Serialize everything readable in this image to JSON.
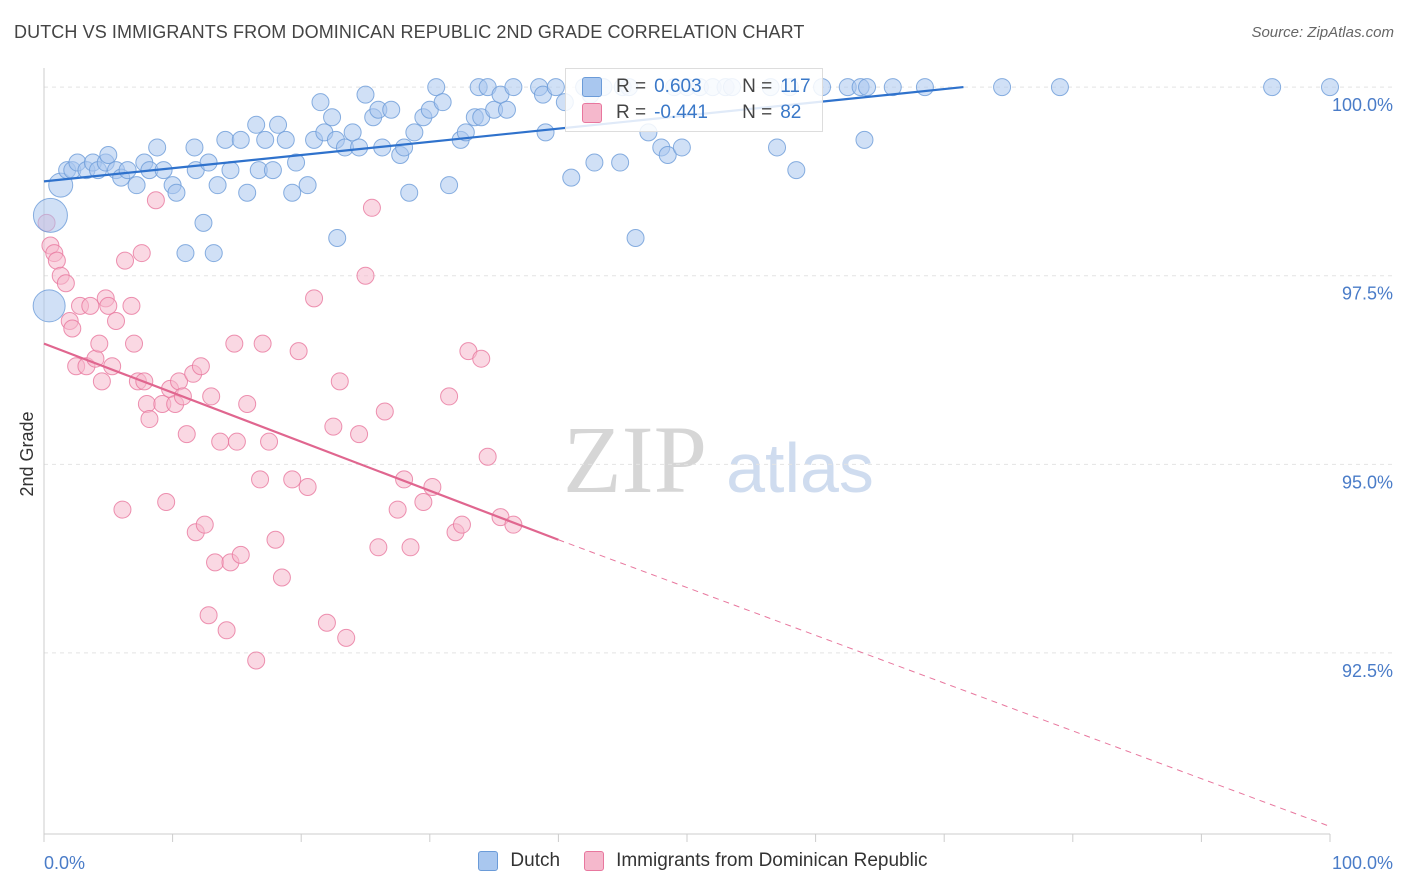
{
  "title": "DUTCH VS IMMIGRANTS FROM DOMINICAN REPUBLIC 2ND GRADE CORRELATION CHART",
  "source": "Source: ZipAtlas.com",
  "watermark": {
    "zip": "ZIP",
    "atlas": "atlas"
  },
  "colors": {
    "blue": "#6b9bd8",
    "blue_fill": "#a9c7ef",
    "pink": "#e8779e",
    "pink_fill": "#f5b8cc",
    "axis_text": "#4a7cc8"
  },
  "legend": {
    "rows": [
      {
        "r_label": "R =",
        "r_value": "0.603",
        "n_label": "N =",
        "n_value": "117"
      },
      {
        "r_label": "R =",
        "r_value": "-0.441",
        "n_label": "N =",
        "n_value": "82"
      }
    ]
  },
  "bottom_legend": {
    "dutch": "Dutch",
    "dominican": "Immigrants from Dominican Republic"
  },
  "chart_data": {
    "type": "scatter",
    "title": "DUTCH VS IMMIGRANTS FROM DOMINICAN REPUBLIC 2ND GRADE CORRELATION CHART",
    "xlabel": "",
    "ylabel": "2nd Grade",
    "x_tick_labels": [
      "0.0%",
      "100.0%"
    ],
    "y_tick_labels": [
      "100.0%",
      "97.5%",
      "95.0%",
      "92.5%"
    ],
    "y_ticks": [
      100.0,
      97.5,
      95.0,
      92.5
    ],
    "xlim": [
      0,
      100
    ],
    "ylim": [
      90.1,
      100.2
    ],
    "grid": true,
    "legend_position": "top-center",
    "series": [
      {
        "name": "Dutch",
        "r": 0.603,
        "n": 117,
        "trend": {
          "x0": 0,
          "y0": 98.75,
          "x1": 71.5,
          "y1": 100.0
        },
        "points": [
          [
            0.5,
            98.3
          ],
          [
            0.4,
            97.1
          ],
          [
            1.3,
            98.7
          ],
          [
            1.8,
            98.9
          ],
          [
            2.2,
            98.9
          ],
          [
            2.6,
            99.0
          ],
          [
            3.3,
            98.9
          ],
          [
            3.8,
            99.0
          ],
          [
            4.2,
            98.9
          ],
          [
            4.8,
            99.0
          ],
          [
            5.0,
            99.1
          ],
          [
            5.6,
            98.9
          ],
          [
            6.0,
            98.8
          ],
          [
            6.5,
            98.9
          ],
          [
            7.2,
            98.7
          ],
          [
            7.8,
            99.0
          ],
          [
            8.2,
            98.9
          ],
          [
            8.8,
            99.2
          ],
          [
            9.3,
            98.9
          ],
          [
            10.0,
            98.7
          ],
          [
            10.3,
            98.6
          ],
          [
            11.0,
            97.8
          ],
          [
            11.7,
            99.2
          ],
          [
            11.8,
            98.9
          ],
          [
            12.4,
            98.2
          ],
          [
            12.8,
            99.0
          ],
          [
            13.2,
            97.8
          ],
          [
            13.5,
            98.7
          ],
          [
            14.1,
            99.3
          ],
          [
            14.5,
            98.9
          ],
          [
            15.3,
            99.3
          ],
          [
            15.8,
            98.6
          ],
          [
            16.5,
            99.5
          ],
          [
            16.7,
            98.9
          ],
          [
            17.2,
            99.3
          ],
          [
            17.8,
            98.9
          ],
          [
            18.2,
            99.5
          ],
          [
            18.8,
            99.3
          ],
          [
            19.3,
            98.6
          ],
          [
            19.6,
            99.0
          ],
          [
            20.5,
            98.7
          ],
          [
            21.0,
            99.3
          ],
          [
            21.5,
            99.8
          ],
          [
            21.8,
            99.4
          ],
          [
            22.4,
            99.6
          ],
          [
            22.7,
            99.3
          ],
          [
            22.8,
            98.0
          ],
          [
            23.4,
            99.2
          ],
          [
            24.0,
            99.4
          ],
          [
            24.5,
            99.2
          ],
          [
            25.0,
            99.9
          ],
          [
            25.6,
            99.6
          ],
          [
            26.0,
            99.7
          ],
          [
            26.3,
            99.2
          ],
          [
            27.0,
            99.7
          ],
          [
            27.7,
            99.1
          ],
          [
            28.0,
            99.2
          ],
          [
            28.4,
            98.6
          ],
          [
            28.8,
            99.4
          ],
          [
            29.5,
            99.6
          ],
          [
            30.0,
            99.7
          ],
          [
            30.5,
            100.0
          ],
          [
            31.0,
            99.8
          ],
          [
            31.5,
            98.7
          ],
          [
            32.4,
            99.3
          ],
          [
            32.8,
            99.4
          ],
          [
            33.5,
            99.6
          ],
          [
            33.8,
            100.0
          ],
          [
            34.0,
            99.6
          ],
          [
            34.5,
            100.0
          ],
          [
            35.0,
            99.7
          ],
          [
            35.5,
            99.9
          ],
          [
            36.0,
            99.7
          ],
          [
            36.5,
            100.0
          ],
          [
            38.5,
            100.0
          ],
          [
            38.8,
            99.9
          ],
          [
            39.0,
            99.4
          ],
          [
            39.8,
            100.0
          ],
          [
            40.5,
            99.8
          ],
          [
            41.0,
            98.8
          ],
          [
            42.0,
            100.0
          ],
          [
            42.5,
            99.9
          ],
          [
            42.8,
            99.0
          ],
          [
            43.5,
            100.0
          ],
          [
            44.8,
            99.0
          ],
          [
            45.0,
            100.0
          ],
          [
            45.5,
            100.0
          ],
          [
            46.0,
            98.0
          ],
          [
            47.0,
            99.4
          ],
          [
            48.0,
            99.2
          ],
          [
            48.5,
            99.1
          ],
          [
            49.0,
            100.0
          ],
          [
            49.6,
            99.2
          ],
          [
            50.0,
            100.0
          ],
          [
            51.0,
            100.0
          ],
          [
            52.0,
            100.0
          ],
          [
            53.0,
            100.0
          ],
          [
            53.5,
            100.0
          ],
          [
            56.5,
            100.0
          ],
          [
            57.0,
            99.2
          ],
          [
            58.0,
            100.0
          ],
          [
            58.5,
            98.9
          ],
          [
            60.5,
            100.0
          ],
          [
            62.5,
            100.0
          ],
          [
            63.5,
            100.0
          ],
          [
            63.8,
            99.3
          ],
          [
            64.0,
            100.0
          ],
          [
            66.0,
            100.0
          ],
          [
            68.5,
            100.0
          ],
          [
            74.5,
            100.0
          ],
          [
            79.0,
            100.0
          ],
          [
            95.5,
            100.0
          ],
          [
            100.0,
            100.0
          ]
        ]
      },
      {
        "name": "Immigrants from Dominican Republic",
        "r": -0.441,
        "n": 82,
        "trend": {
          "x0": 0,
          "y0": 96.6,
          "x1": 40.0,
          "y1": 94.0,
          "dash_to_x": 100,
          "dash_to_y": 90.2
        },
        "points": [
          [
            0.2,
            98.2
          ],
          [
            0.5,
            97.9
          ],
          [
            0.8,
            97.8
          ],
          [
            1.0,
            97.7
          ],
          [
            1.3,
            97.5
          ],
          [
            1.7,
            97.4
          ],
          [
            2.0,
            96.9
          ],
          [
            2.2,
            96.8
          ],
          [
            2.5,
            96.3
          ],
          [
            2.8,
            97.1
          ],
          [
            3.3,
            96.3
          ],
          [
            3.6,
            97.1
          ],
          [
            4.0,
            96.4
          ],
          [
            4.3,
            96.6
          ],
          [
            4.5,
            96.1
          ],
          [
            4.8,
            97.2
          ],
          [
            5.0,
            97.1
          ],
          [
            5.3,
            96.3
          ],
          [
            5.6,
            96.9
          ],
          [
            6.1,
            94.4
          ],
          [
            6.3,
            97.7
          ],
          [
            6.8,
            97.1
          ],
          [
            7.0,
            96.6
          ],
          [
            7.3,
            96.1
          ],
          [
            7.6,
            97.8
          ],
          [
            7.8,
            96.1
          ],
          [
            8.0,
            95.8
          ],
          [
            8.2,
            95.6
          ],
          [
            8.7,
            98.5
          ],
          [
            9.2,
            95.8
          ],
          [
            9.5,
            94.5
          ],
          [
            9.8,
            96.0
          ],
          [
            10.2,
            95.8
          ],
          [
            10.5,
            96.1
          ],
          [
            10.8,
            95.9
          ],
          [
            11.1,
            95.4
          ],
          [
            11.6,
            96.2
          ],
          [
            11.8,
            94.1
          ],
          [
            12.2,
            96.3
          ],
          [
            12.5,
            94.2
          ],
          [
            12.8,
            93.0
          ],
          [
            13.0,
            95.9
          ],
          [
            13.3,
            93.7
          ],
          [
            13.7,
            95.3
          ],
          [
            14.2,
            92.8
          ],
          [
            14.5,
            93.7
          ],
          [
            14.8,
            96.6
          ],
          [
            15.0,
            95.3
          ],
          [
            15.3,
            93.8
          ],
          [
            15.8,
            95.8
          ],
          [
            16.5,
            92.4
          ],
          [
            16.8,
            94.8
          ],
          [
            17.0,
            96.6
          ],
          [
            17.5,
            95.3
          ],
          [
            18.0,
            94.0
          ],
          [
            18.5,
            93.5
          ],
          [
            19.3,
            94.8
          ],
          [
            19.8,
            96.5
          ],
          [
            20.5,
            94.7
          ],
          [
            21.0,
            97.2
          ],
          [
            22.0,
            92.9
          ],
          [
            22.5,
            95.5
          ],
          [
            23.0,
            96.1
          ],
          [
            23.5,
            92.7
          ],
          [
            24.5,
            95.4
          ],
          [
            25.0,
            97.5
          ],
          [
            25.5,
            98.4
          ],
          [
            26.0,
            93.9
          ],
          [
            26.5,
            95.7
          ],
          [
            27.5,
            94.4
          ],
          [
            28.0,
            94.8
          ],
          [
            28.5,
            93.9
          ],
          [
            29.5,
            94.5
          ],
          [
            30.2,
            94.7
          ],
          [
            31.5,
            95.9
          ],
          [
            32.0,
            94.1
          ],
          [
            32.5,
            94.2
          ],
          [
            33.0,
            96.5
          ],
          [
            34.0,
            96.4
          ],
          [
            34.5,
            95.1
          ],
          [
            35.5,
            94.3
          ],
          [
            36.5,
            94.2
          ]
        ]
      }
    ]
  }
}
